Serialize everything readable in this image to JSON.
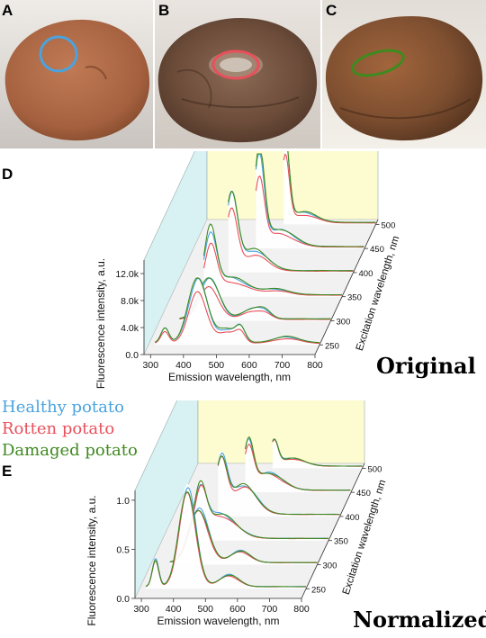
{
  "panels": {
    "A": "A",
    "B": "B",
    "C": "C",
    "D": "D",
    "E": "E"
  },
  "legend": [
    {
      "label": "Healthy potato",
      "color": "#4aa3df"
    },
    {
      "label": "Rotten potato",
      "color": "#e8505b"
    },
    {
      "label": "Damaged potato",
      "color": "#3f8a1f"
    }
  ],
  "colors": {
    "healthy": "#4aa3df",
    "rotten": "#e8505b",
    "damaged": "#3f8a1f",
    "back_wall": "#fdfbd0",
    "side_wall": "#d8f1f3",
    "floor": "#f1f1f1"
  },
  "chart_data": [
    {
      "type": "line",
      "panel": "D",
      "caption": "Original",
      "xlabel": "Emission wavelength, nm",
      "ylabel": "Fluorescence intensity, a.u.",
      "zlabel": "Excitation wavelength, nm",
      "x_ticks": [
        "300",
        "400",
        "500",
        "600",
        "700",
        "800"
      ],
      "y_ticks": [
        "0.0",
        "4.0k",
        "8.0k",
        "12.0k"
      ],
      "z_ticks": [
        "250",
        "300",
        "350",
        "400",
        "450",
        "500"
      ],
      "xlim": [
        280,
        800
      ],
      "ylim": [
        0,
        14000
      ],
      "zlim": [
        230,
        510
      ],
      "series": [
        {
          "name": "Healthy potato",
          "scale": 1.0
        },
        {
          "name": "Rotten potato",
          "scale": 0.78
        },
        {
          "name": "Damaged potato",
          "scale": 1.05
        }
      ],
      "slices": [
        {
          "excitation": 250,
          "start": 300,
          "end": 800,
          "peaks": [
            [
              330,
              2200,
              12
            ],
            [
              430,
              9500,
              28
            ],
            [
              520,
              2000,
              30
            ],
            [
              560,
              1800,
              14
            ],
            [
              700,
              900,
              40
            ]
          ]
        },
        {
          "excitation": 300,
          "start": 340,
          "end": 800,
          "peaks": [
            [
              430,
              6000,
              30
            ],
            [
              560,
              1400,
              30
            ],
            [
              600,
              900,
              20
            ]
          ]
        },
        {
          "excitation": 350,
          "start": 380,
          "end": 800,
          "peaks": [
            [
              400,
              8500,
              18
            ],
            [
              460,
              2500,
              50
            ],
            [
              600,
              800,
              40
            ]
          ]
        },
        {
          "excitation": 400,
          "start": 420,
          "end": 800,
          "peaks": [
            [
              430,
              11000,
              18
            ],
            [
              500,
              3000,
              40
            ]
          ]
        },
        {
          "excitation": 450,
          "start": 470,
          "end": 800,
          "peaks": [
            [
              480,
              13000,
              15
            ],
            [
              540,
              2500,
              45
            ]
          ]
        },
        {
          "excitation": 500,
          "start": 520,
          "end": 800,
          "peaks": [
            [
              525,
              12000,
              12
            ],
            [
              580,
              1500,
              40
            ]
          ]
        }
      ]
    },
    {
      "type": "line",
      "panel": "E",
      "caption": "Normalized",
      "xlabel": "Emission wavelength, nm",
      "ylabel": "Fluorescence intensity, a.u.",
      "zlabel": "Excitation wavelength, nm",
      "x_ticks": [
        "300",
        "400",
        "500",
        "600",
        "700",
        "800"
      ],
      "y_ticks": [
        "0.0",
        "0.5",
        "1.0"
      ],
      "z_ticks": [
        "250",
        "300",
        "350",
        "400",
        "450",
        "500"
      ],
      "xlim": [
        280,
        800
      ],
      "ylim": [
        0,
        1.1
      ],
      "zlim": [
        230,
        510
      ],
      "series": [
        {
          "name": "Healthy potato",
          "scale": 1.0
        },
        {
          "name": "Rotten potato",
          "scale": 0.93
        },
        {
          "name": "Damaged potato",
          "scale": 1.0
        }
      ],
      "slices": [
        {
          "excitation": 250,
          "start": 300,
          "end": 800,
          "peaks": [
            [
              330,
              0.28,
              10
            ],
            [
              430,
              1.0,
              26
            ],
            [
              560,
              0.12,
              30
            ]
          ]
        },
        {
          "excitation": 300,
          "start": 340,
          "end": 800,
          "peaks": [
            [
              430,
              0.55,
              30
            ],
            [
              560,
              0.12,
              30
            ]
          ]
        },
        {
          "excitation": 350,
          "start": 380,
          "end": 800,
          "peaks": [
            [
              400,
              0.45,
              18
            ],
            [
              460,
              0.25,
              50
            ]
          ]
        },
        {
          "excitation": 400,
          "start": 420,
          "end": 800,
          "peaks": [
            [
              430,
              0.55,
              18
            ],
            [
              500,
              0.3,
              40
            ]
          ]
        },
        {
          "excitation": 450,
          "start": 470,
          "end": 800,
          "peaks": [
            [
              480,
              0.45,
              15
            ],
            [
              540,
              0.18,
              45
            ]
          ]
        },
        {
          "excitation": 500,
          "start": 520,
          "end": 800,
          "peaks": [
            [
              525,
              0.25,
              12
            ],
            [
              580,
              0.08,
              40
            ]
          ]
        }
      ]
    }
  ]
}
